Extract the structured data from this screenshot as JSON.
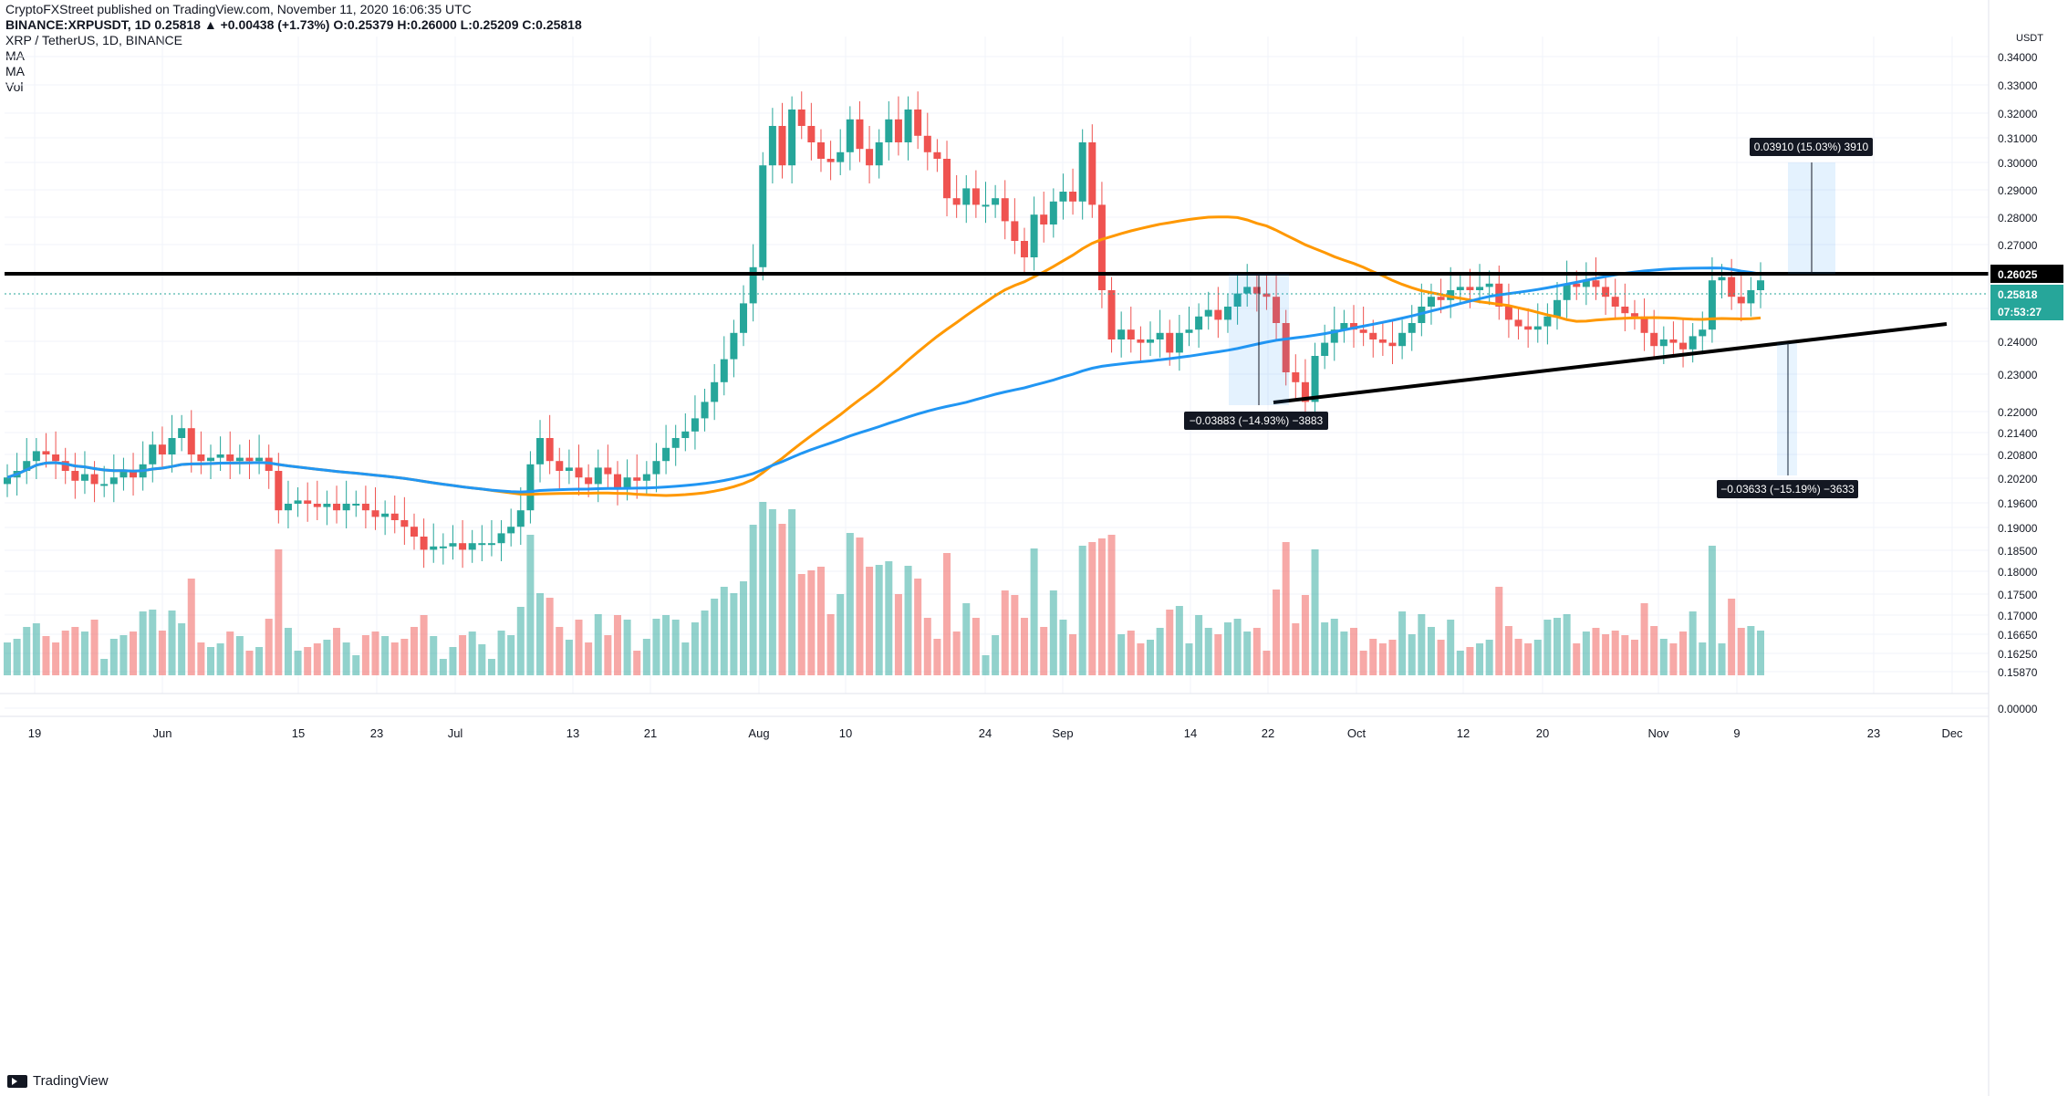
{
  "header": {
    "publisher_line": "CryptoFXStreet published on TradingView.com, November 11, 2020 16:06:35 UTC",
    "ohlc_line": "BINANCE:XRPUSDT, 1D 0.25818 ▲ +0.00438 (+1.73%) O:0.25379 H:0.26000 L:0.25209 C:0.25818"
  },
  "legend": {
    "title": "XRP / TetherUS, 1D, BINANCE",
    "ma1": "MA",
    "ma2": "MA",
    "vol": "Vol"
  },
  "footer": {
    "brand": "TradingView"
  },
  "price_axis": {
    "currency": "USDT",
    "labels": [
      "0.34000",
      "0.33000",
      "0.32000",
      "0.31000",
      "0.30000",
      "0.29000",
      "0.28000",
      "0.27000",
      "0.26000",
      "0.25000",
      "0.24000",
      "0.23000",
      "0.22000",
      "0.21400",
      "0.20800",
      "0.20200",
      "0.19600",
      "0.19000",
      "0.18500",
      "0.18000",
      "0.17500",
      "0.17000",
      "0.16650",
      "0.16250",
      "0.15870",
      "0.00000"
    ],
    "resistance_label": "0.26025",
    "price_label": "0.25818",
    "countdown_label": "07:53:27"
  },
  "time_axis": {
    "labels": [
      "19",
      "Jun",
      "15",
      "23",
      "Jul",
      "13",
      "21",
      "Aug",
      "10",
      "24",
      "Sep",
      "14",
      "22",
      "Oct",
      "12",
      "20",
      "Nov",
      "9",
      "23",
      "Dec"
    ]
  },
  "annotations": {
    "up_target": "0.03910 (15.03%) 3910",
    "down_left": "−0.03883 (−14.93%) −3883",
    "down_right": "−0.03633 (−15.19%) −3633"
  },
  "colors": {
    "up": "#26a69a",
    "down": "#ef5350",
    "vol_up": "#26a69a",
    "vol_down": "#ef5350",
    "ma_fast": "#2196f3",
    "ma_slow": "#ff9800",
    "level": "#000000"
  },
  "chart_data": {
    "type": "candlestick",
    "symbol": "XRP / TetherUS",
    "interval": "1D",
    "ylim": [
      0.158,
      0.35
    ],
    "series": [
      {
        "name": "price",
        "close": [
          0.198,
          0.2,
          0.203,
          0.206,
          0.205,
          0.203,
          0.2,
          0.197,
          0.199,
          0.196,
          0.196,
          0.198,
          0.2,
          0.198,
          0.202,
          0.208,
          0.205,
          0.21,
          0.213,
          0.205,
          0.203,
          0.204,
          0.205,
          0.203,
          0.204,
          0.203,
          0.204,
          0.2,
          0.188,
          0.19,
          0.191,
          0.19,
          0.189,
          0.19,
          0.188,
          0.19,
          0.19,
          0.188,
          0.186,
          0.187,
          0.185,
          0.183,
          0.18,
          0.176,
          0.177,
          0.177,
          0.178,
          0.176,
          0.178,
          0.178,
          0.178,
          0.181,
          0.183,
          0.188,
          0.202,
          0.21,
          0.203,
          0.2,
          0.201,
          0.198,
          0.196,
          0.201,
          0.199,
          0.195,
          0.198,
          0.197,
          0.199,
          0.203,
          0.207,
          0.21,
          0.212,
          0.216,
          0.221,
          0.227,
          0.234,
          0.242,
          0.251,
          0.262,
          0.293,
          0.305,
          0.293,
          0.31,
          0.305,
          0.3,
          0.295,
          0.294,
          0.297,
          0.307,
          0.298,
          0.293,
          0.3,
          0.307,
          0.3,
          0.31,
          0.302,
          0.297,
          0.295,
          0.283,
          0.281,
          0.286,
          0.281,
          0.281,
          0.283,
          0.276,
          0.27,
          0.265,
          0.278,
          0.275,
          0.282,
          0.285,
          0.282,
          0.3,
          0.281,
          0.255,
          0.24,
          0.243,
          0.24,
          0.239,
          0.24,
          0.242,
          0.236,
          0.242,
          0.243,
          0.247,
          0.249,
          0.246,
          0.25,
          0.254,
          0.256,
          0.254,
          0.253,
          0.245,
          0.23,
          0.227,
          0.221,
          0.235,
          0.239,
          0.243,
          0.245,
          0.243,
          0.242,
          0.24,
          0.239,
          0.238,
          0.242,
          0.245,
          0.25,
          0.253,
          0.252,
          0.255,
          0.256,
          0.255,
          0.256,
          0.257,
          0.25,
          0.246,
          0.244,
          0.243,
          0.244,
          0.247,
          0.252,
          0.257,
          0.256,
          0.258,
          0.256,
          0.253,
          0.25,
          0.248,
          0.247,
          0.242,
          0.238,
          0.24,
          0.239,
          0.237,
          0.241,
          0.243,
          0.258,
          0.259,
          0.253,
          0.251,
          0.255,
          0.258
        ]
      }
    ],
    "ma_fast_label": "MA",
    "ma_slow_label": "MA",
    "volume_label": "Vol"
  }
}
